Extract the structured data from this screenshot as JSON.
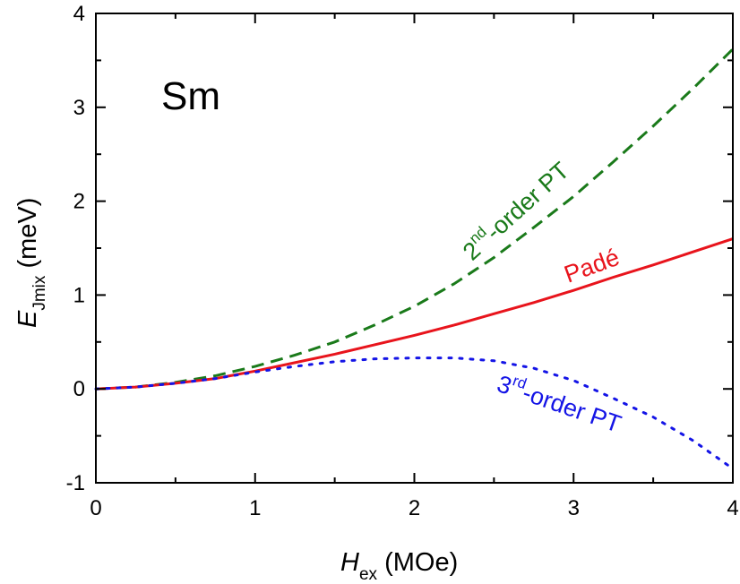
{
  "chart_data": {
    "type": "line",
    "panel_label": "Sm",
    "xlabel": {
      "main": "H",
      "sub": "ex",
      "unit": " (MOe)"
    },
    "ylabel": {
      "main": "E",
      "sub": "Jmix",
      "unit": " (meV)"
    },
    "xlim": [
      0,
      4
    ],
    "ylim": [
      -1,
      4
    ],
    "xticks": [
      0,
      1,
      2,
      3,
      4
    ],
    "yticks": [
      -1,
      0,
      1,
      2,
      3,
      4
    ],
    "xtick_labels": [
      "0",
      "1",
      "2",
      "3",
      "4"
    ],
    "ytick_labels": [
      "-1",
      "0",
      "1",
      "2",
      "3",
      "4"
    ],
    "grid": false,
    "series": [
      {
        "name": "2nd-order PT",
        "color": "#1a7a1a",
        "style": "dashed",
        "x": [
          0,
          0.25,
          0.5,
          0.75,
          1.0,
          1.25,
          1.5,
          1.75,
          2.0,
          2.25,
          2.5,
          2.75,
          3.0,
          3.25,
          3.5,
          3.75,
          4.0
        ],
        "y": [
          0,
          0.02,
          0.07,
          0.14,
          0.24,
          0.36,
          0.5,
          0.68,
          0.88,
          1.12,
          1.4,
          1.72,
          2.05,
          2.42,
          2.8,
          3.2,
          3.62
        ]
      },
      {
        "name": "Padé",
        "color": "#e8141c",
        "style": "solid",
        "x": [
          0,
          0.25,
          0.5,
          0.75,
          1.0,
          1.25,
          1.5,
          1.75,
          2.0,
          2.25,
          2.5,
          2.75,
          3.0,
          3.25,
          3.5,
          3.75,
          4.0
        ],
        "y": [
          0,
          0.02,
          0.06,
          0.11,
          0.19,
          0.28,
          0.37,
          0.47,
          0.57,
          0.68,
          0.8,
          0.92,
          1.05,
          1.19,
          1.32,
          1.46,
          1.6
        ]
      },
      {
        "name": "3rd-order PT",
        "color": "#1414e6",
        "style": "dotted",
        "x": [
          0,
          0.25,
          0.5,
          0.75,
          1.0,
          1.25,
          1.5,
          1.75,
          2.0,
          2.25,
          2.5,
          2.75,
          3.0,
          3.25,
          3.5,
          3.75,
          4.0
        ],
        "y": [
          0,
          0.02,
          0.06,
          0.11,
          0.18,
          0.24,
          0.29,
          0.32,
          0.33,
          0.33,
          0.3,
          0.22,
          0.09,
          -0.1,
          -0.3,
          -0.55,
          -0.85
        ]
      }
    ],
    "annotations": [
      {
        "main": "2",
        "sup": "nd",
        "rest": "-order PT",
        "series": "2nd-order PT"
      },
      {
        "main": "Padé",
        "series": "Padé"
      },
      {
        "main": "3",
        "sup": "rd",
        "rest": "-order PT",
        "series": "3rd-order PT"
      }
    ]
  }
}
